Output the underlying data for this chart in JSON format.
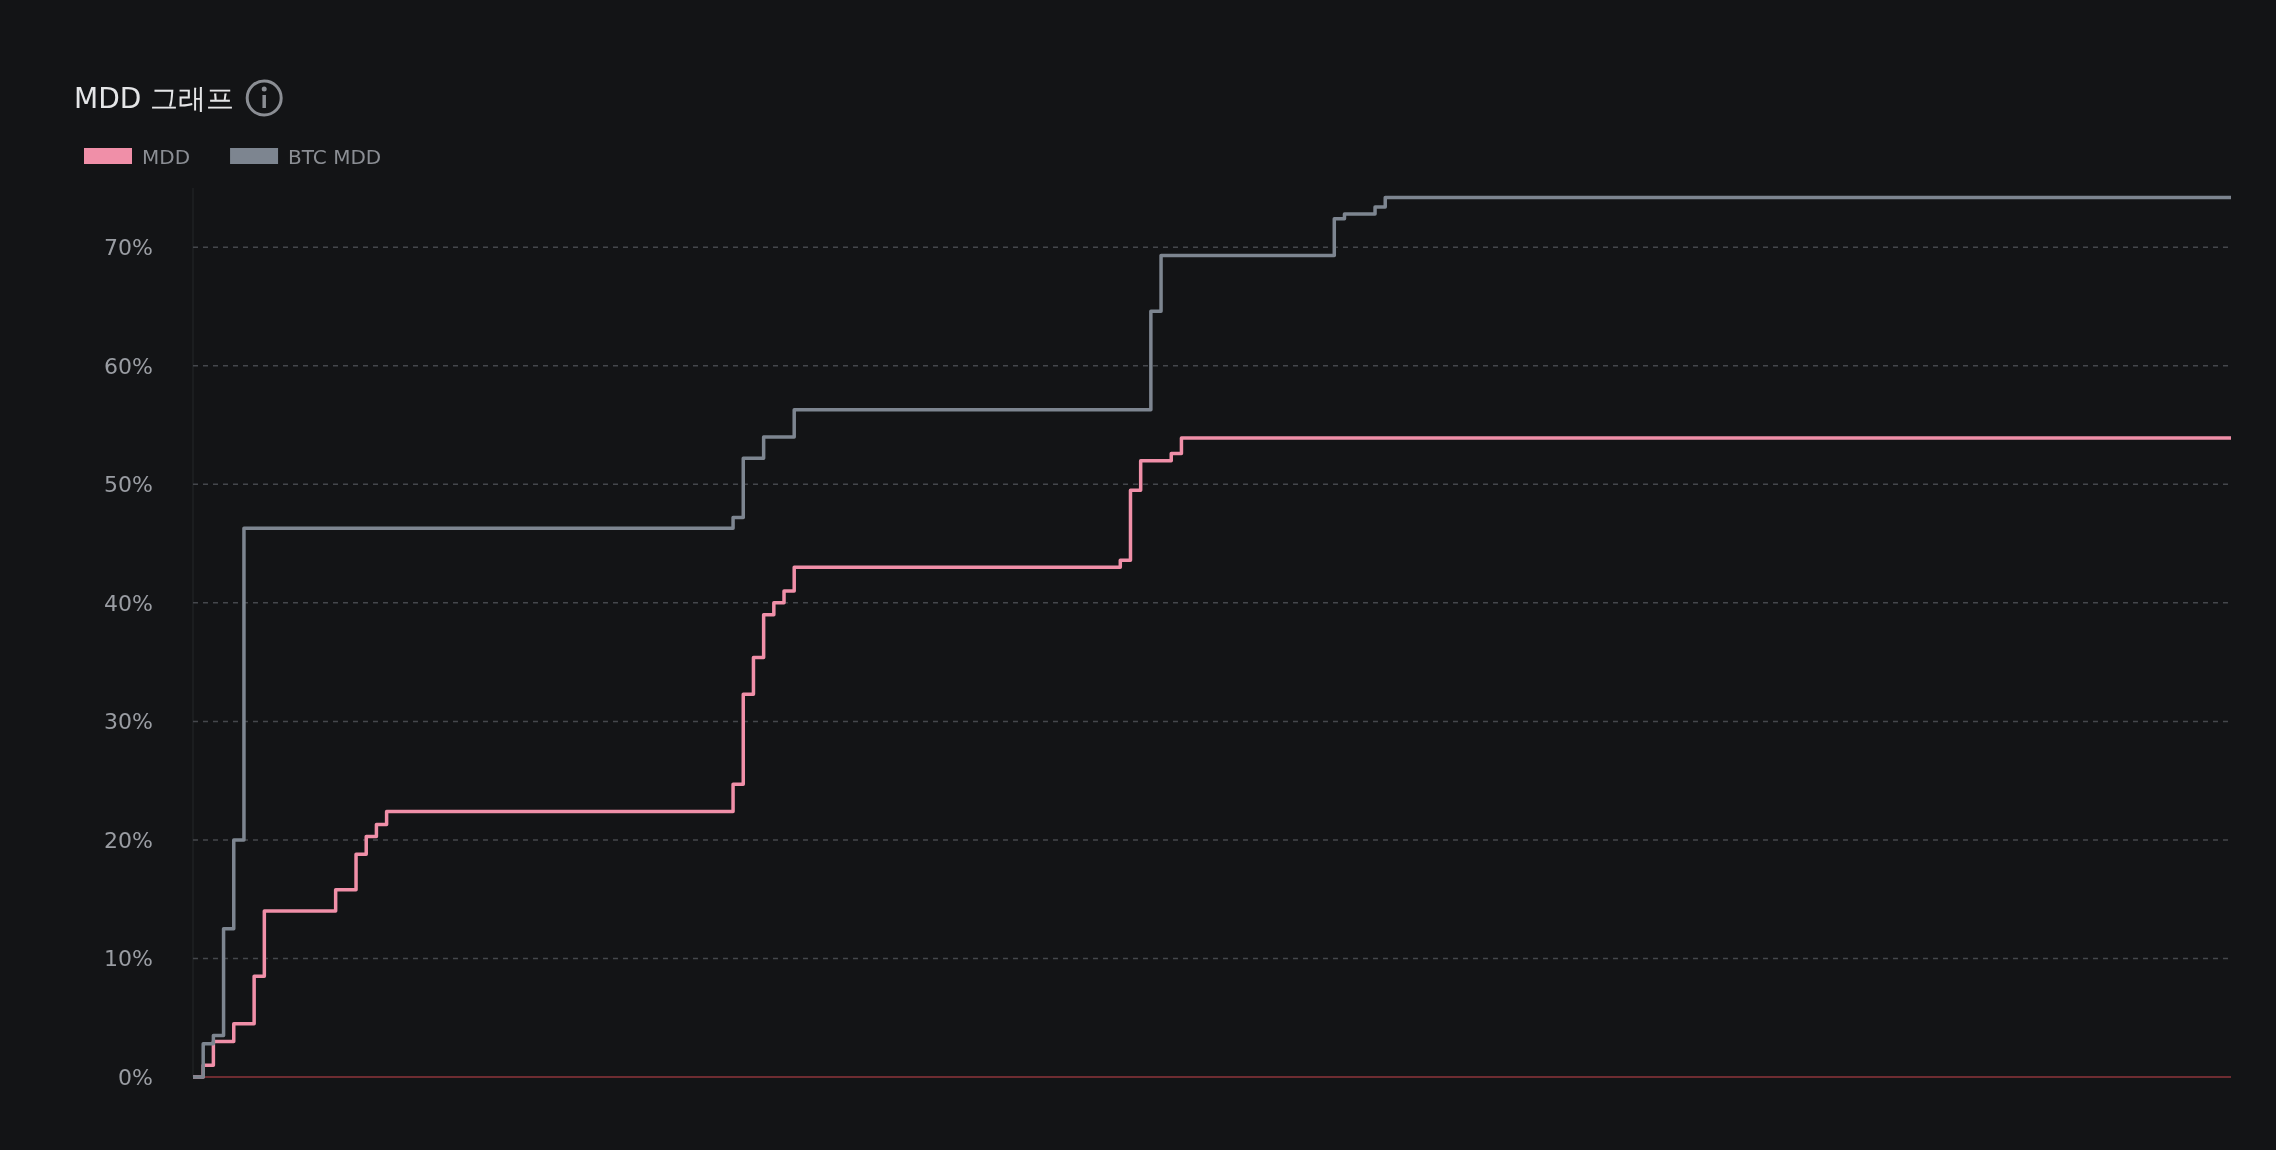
{
  "chart_data": {
    "type": "step",
    "title": "MDD 그래프",
    "categories": [
      null,
      null,
      null,
      null,
      null,
      null,
      null,
      null,
      null,
      null,
      null,
      null,
      null,
      null,
      null,
      null,
      null,
      null,
      null,
      null,
      null,
      null,
      null,
      null,
      null,
      null,
      null,
      null,
      null,
      null,
      null,
      null,
      null,
      null,
      null,
      null,
      null,
      null,
      null,
      null,
      null,
      null,
      null,
      null,
      null,
      null,
      null,
      null,
      null,
      null,
      null,
      null,
      null,
      null,
      null,
      null,
      null,
      null,
      null,
      null,
      null,
      null,
      null,
      null,
      null,
      null,
      null,
      null,
      null,
      null,
      null,
      null,
      null,
      null,
      null,
      null,
      null,
      null,
      null,
      null,
      null,
      null,
      null,
      null,
      null,
      null,
      null,
      null,
      null,
      null,
      null,
      null,
      null,
      null,
      null,
      null,
      null,
      null,
      null,
      null,
      null,
      null,
      null,
      null,
      null,
      null,
      null,
      null,
      null,
      null,
      null,
      null,
      null,
      null,
      null,
      null,
      null,
      null,
      null,
      null,
      null,
      null,
      null,
      null,
      null,
      null,
      null,
      null,
      null,
      null,
      null,
      null,
      null,
      null,
      null,
      null,
      null,
      null,
      null,
      null,
      null,
      null,
      null,
      null,
      null,
      null,
      null,
      null,
      null,
      null,
      null,
      null,
      null,
      null,
      null,
      null,
      null,
      null,
      null,
      null,
      null,
      null,
      null,
      null,
      null,
      null,
      null,
      null,
      null,
      null,
      null,
      null,
      null,
      null,
      null,
      null,
      null,
      null,
      null,
      null,
      null,
      null,
      null,
      null,
      null,
      null,
      null,
      null,
      null,
      null,
      null,
      null,
      null,
      null,
      null,
      null,
      null,
      null,
      null,
      null,
      null
    ],
    "series": [
      {
        "name": "MDD",
        "color": "#f08fa8",
        "values": [
          0,
          1,
          3,
          3,
          4.5,
          4.5,
          8.5,
          14,
          14,
          14,
          14,
          14,
          14,
          14,
          15.8,
          15.8,
          18.8,
          20.3,
          21.3,
          22.4,
          22.4,
          22.4,
          22.4,
          22.4,
          22.4,
          22.4,
          22.4,
          22.4,
          22.4,
          22.4,
          22.4,
          22.4,
          22.4,
          22.4,
          22.4,
          22.4,
          22.4,
          22.4,
          22.4,
          22.4,
          22.4,
          22.4,
          22.4,
          22.4,
          22.4,
          22.4,
          22.4,
          22.4,
          22.4,
          22.4,
          22.4,
          22.4,
          22.4,
          24.7,
          32.3,
          35.4,
          39,
          40,
          41,
          43,
          43,
          43,
          43,
          43,
          43,
          43,
          43,
          43,
          43,
          43,
          43,
          43,
          43,
          43,
          43,
          43,
          43,
          43,
          43,
          43,
          43,
          43,
          43,
          43,
          43,
          43,
          43,
          43,
          43,
          43,
          43,
          43.6,
          49.5,
          52,
          52,
          52,
          52.6,
          53.9,
          53.9,
          53.9,
          53.9,
          53.9,
          53.9,
          53.9,
          53.9,
          53.9,
          53.9,
          53.9,
          53.9,
          53.9,
          53.9,
          53.9,
          53.9,
          53.9,
          53.9,
          53.9,
          53.9,
          53.9,
          53.9,
          53.9,
          53.9,
          53.9,
          53.9,
          53.9,
          53.9,
          53.9,
          53.9,
          53.9,
          53.9,
          53.9,
          53.9,
          53.9,
          53.9,
          53.9,
          53.9,
          53.9,
          53.9,
          53.9,
          53.9,
          53.9,
          53.9,
          53.9,
          53.9,
          53.9,
          53.9,
          53.9,
          53.9,
          53.9,
          53.9,
          53.9,
          53.9,
          53.9,
          53.9,
          53.9,
          53.9,
          53.9,
          53.9,
          53.9,
          53.9,
          53.9,
          53.9,
          53.9,
          53.9,
          53.9,
          53.9,
          53.9,
          53.9,
          53.9,
          53.9,
          53.9,
          53.9,
          53.9,
          53.9,
          53.9,
          53.9,
          53.9,
          53.9,
          53.9,
          53.9,
          53.9,
          53.9,
          53.9,
          53.9,
          53.9,
          53.9,
          53.9,
          53.9,
          53.9,
          53.9,
          53.9,
          53.9,
          53.9,
          53.9,
          53.9,
          53.9,
          53.9,
          53.9,
          53.9,
          53.9,
          53.9,
          53.9
        ]
      },
      {
        "name": "BTC MDD",
        "color": "#7d8590",
        "values": [
          0,
          2.8,
          3.5,
          12.5,
          20,
          46.3,
          46.3,
          46.3,
          46.3,
          46.3,
          46.3,
          46.3,
          46.3,
          46.3,
          46.3,
          46.3,
          46.3,
          46.3,
          46.3,
          46.3,
          46.3,
          46.3,
          46.3,
          46.3,
          46.3,
          46.3,
          46.3,
          46.3,
          46.3,
          46.3,
          46.3,
          46.3,
          46.3,
          46.3,
          46.3,
          46.3,
          46.3,
          46.3,
          46.3,
          46.3,
          46.3,
          46.3,
          46.3,
          46.3,
          46.3,
          46.3,
          46.3,
          46.3,
          46.3,
          46.3,
          46.3,
          46.3,
          46.3,
          47.2,
          52.2,
          52.2,
          54,
          54,
          54,
          56.3,
          56.3,
          56.3,
          56.3,
          56.3,
          56.3,
          56.3,
          56.3,
          56.3,
          56.3,
          56.3,
          56.3,
          56.3,
          56.3,
          56.3,
          56.3,
          56.3,
          56.3,
          56.3,
          56.3,
          56.3,
          56.3,
          56.3,
          56.3,
          56.3,
          56.3,
          56.3,
          56.3,
          56.3,
          56.3,
          56.3,
          56.3,
          56.3,
          56.3,
          56.3,
          64.6,
          69.3,
          69.3,
          69.3,
          69.3,
          69.3,
          69.3,
          69.3,
          69.3,
          69.3,
          69.3,
          69.3,
          69.3,
          69.3,
          69.3,
          69.3,
          69.3,
          69.3,
          72.4,
          72.8,
          72.8,
          72.8,
          73.4,
          74.2,
          74.2,
          74.2,
          74.2,
          74.2,
          74.2,
          74.2,
          74.2,
          74.2,
          74.2,
          74.2,
          74.2,
          74.2,
          74.2,
          74.2,
          74.2,
          74.2,
          74.2,
          74.2,
          74.2,
          74.2,
          74.2,
          74.2,
          74.2,
          74.2,
          74.2,
          74.2,
          74.2,
          74.2,
          74.2,
          74.2,
          74.2,
          74.2,
          74.2,
          74.2,
          74.2,
          74.2,
          74.2,
          74.2,
          74.2,
          74.2,
          74.2,
          74.2,
          74.2,
          74.2,
          74.2,
          74.2,
          74.2,
          74.2,
          74.2,
          74.2,
          74.2,
          74.2,
          74.2,
          74.2,
          74.2,
          74.2,
          74.2,
          74.2,
          74.2,
          74.2,
          74.2,
          74.2,
          74.2,
          74.2,
          74.2,
          74.2,
          74.2,
          74.2,
          74.2,
          74.2,
          74.2,
          74.2,
          74.2,
          74.2,
          74.2,
          74.2,
          74.2,
          74.2,
          74.2,
          74.2,
          74.2,
          74.2,
          74.2
        ]
      }
    ],
    "yticks": [
      {
        "value": 0,
        "label": "0%"
      },
      {
        "value": 10,
        "label": "10%"
      },
      {
        "value": 20,
        "label": "20%"
      },
      {
        "value": 30,
        "label": "30%"
      },
      {
        "value": 40,
        "label": "40%"
      },
      {
        "value": 50,
        "label": "50%"
      },
      {
        "value": 60,
        "label": "60%"
      },
      {
        "value": 70,
        "label": "70%"
      }
    ],
    "ylim": [
      0,
      75
    ],
    "ref_lines": [
      {
        "axis": "y",
        "value": 0,
        "color": "#6e2c31"
      }
    ],
    "grid": "y",
    "legend": "top left"
  }
}
